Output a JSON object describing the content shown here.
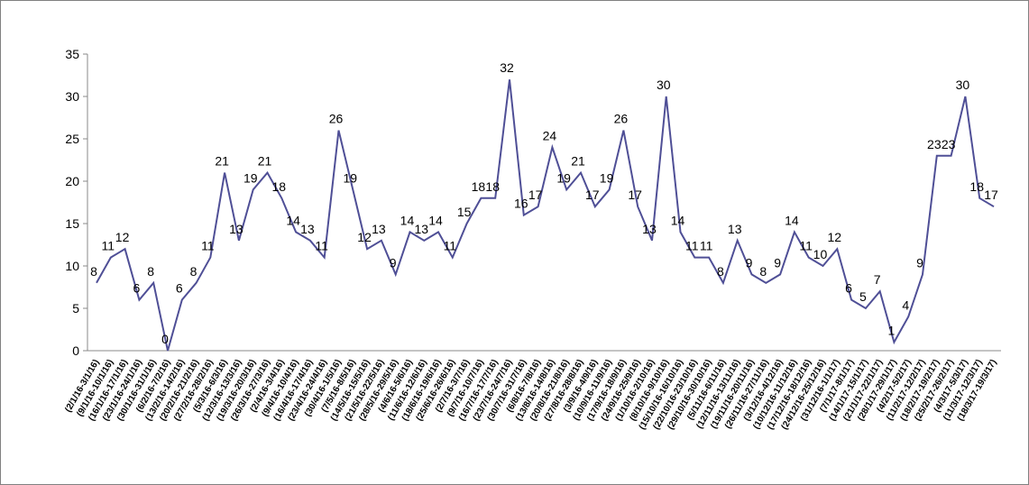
{
  "chart_data": {
    "type": "line",
    "categories": [
      "(2/1/16-3/1/16)",
      "(9/1/16-10/1/16)",
      "(16/1/16-17/1/16)",
      "(23/1/16-24/1/16)",
      "(30/1/16-31/1/16)",
      "(6/2/16-7/2/16)",
      "(13/2/16-14/2/16)",
      "(20/2/16-21/2/16)",
      "(27/2/16-28/2/16)",
      "(5/3/16-6/3/16)",
      "(12/3/16-13/3/16)",
      "(19/3/16-20/3/16)",
      "(26/3/16-27/3/16)",
      "(2/4/16-3/4/16)",
      "(9/4/16-10/4/16)",
      "(16/4/16-17/4/16)",
      "(23/4/16-24/4/16)",
      "(30/4/16-1/5/16)",
      "(7/5/16-8/5/16)",
      "(14/5/16-15/5/16)",
      "(21/5/16-22/5/16)",
      "(28/5/16-29/5/16)",
      "(4/6/16-5/6/16)",
      "(11/6/16-12/6/16)",
      "(18/6/16-19/6/16)",
      "(25/6/16-26/6/16)",
      "(2/7/16-3/7/16)",
      "(9/7/16-10/7/16)",
      "(16/7/16-17/7/16)",
      "(23/7/16-24/7/16)",
      "(30/7/16-31/7/16)",
      "(6/8/16-7/8/16)",
      "(13/8/16-14/8/16)",
      "(20/8/16-21/8/16)",
      "(27/8/16-28/8/16)",
      "(3/9/16-4/9/16)",
      "(10/9/16-11/9/16)",
      "(17/9/16-18/9/16)",
      "(24/9/16-25/9/16)",
      "(1/10/16-2/10/16)",
      "(8/10/16-9/10/16)",
      "(15/10/16-16/10/16)",
      "(22/10/16-23/10/16)",
      "(29/10/16-30/10/16)",
      "(5/11/16-6/11/16)",
      "(12/11/16-13/11/16)",
      "(19/11/16-20/11/16)",
      "(26/11/16-27/11/16)",
      "(3/12/16-4/12/16)",
      "(10/12/16-11/12/16)",
      "(17/12/16-18/12/16)",
      "(24/12/16-25/12/16)",
      "(31/12/16-1/1/17)",
      "(7/1/17-8/1/17)",
      "(14/1/17-15/1/17)",
      "(21/1/17-22/1/17)",
      "(28/1/17-29/1/17)",
      "(4/2/17-5/2/17)",
      "(11/2/17-12/2/17)",
      "(18/2/17-19/2/17)",
      "(25/2/17-26/2/17)",
      "(4/3/17-5/3/17)",
      "(11/3/17-12/3/17)",
      "(18/3/17-19/3/17)"
    ],
    "values": [
      8,
      11,
      12,
      6,
      8,
      0,
      6,
      8,
      11,
      21,
      13,
      19,
      21,
      18,
      14,
      13,
      11,
      26,
      19,
      12,
      13,
      9,
      14,
      13,
      14,
      11,
      15,
      18,
      18,
      32,
      16,
      17,
      24,
      19,
      21,
      17,
      19,
      26,
      17,
      13,
      30,
      14,
      11,
      11,
      8,
      13,
      9,
      8,
      9,
      14,
      11,
      10,
      12,
      6,
      5,
      7,
      1,
      4,
      9,
      23,
      23,
      30,
      18,
      17
    ],
    "color": "#4f4f96",
    "ylim": [
      0,
      35
    ],
    "yticks": [
      0,
      5,
      10,
      15,
      20,
      25,
      30,
      35
    ],
    "grid": false
  }
}
